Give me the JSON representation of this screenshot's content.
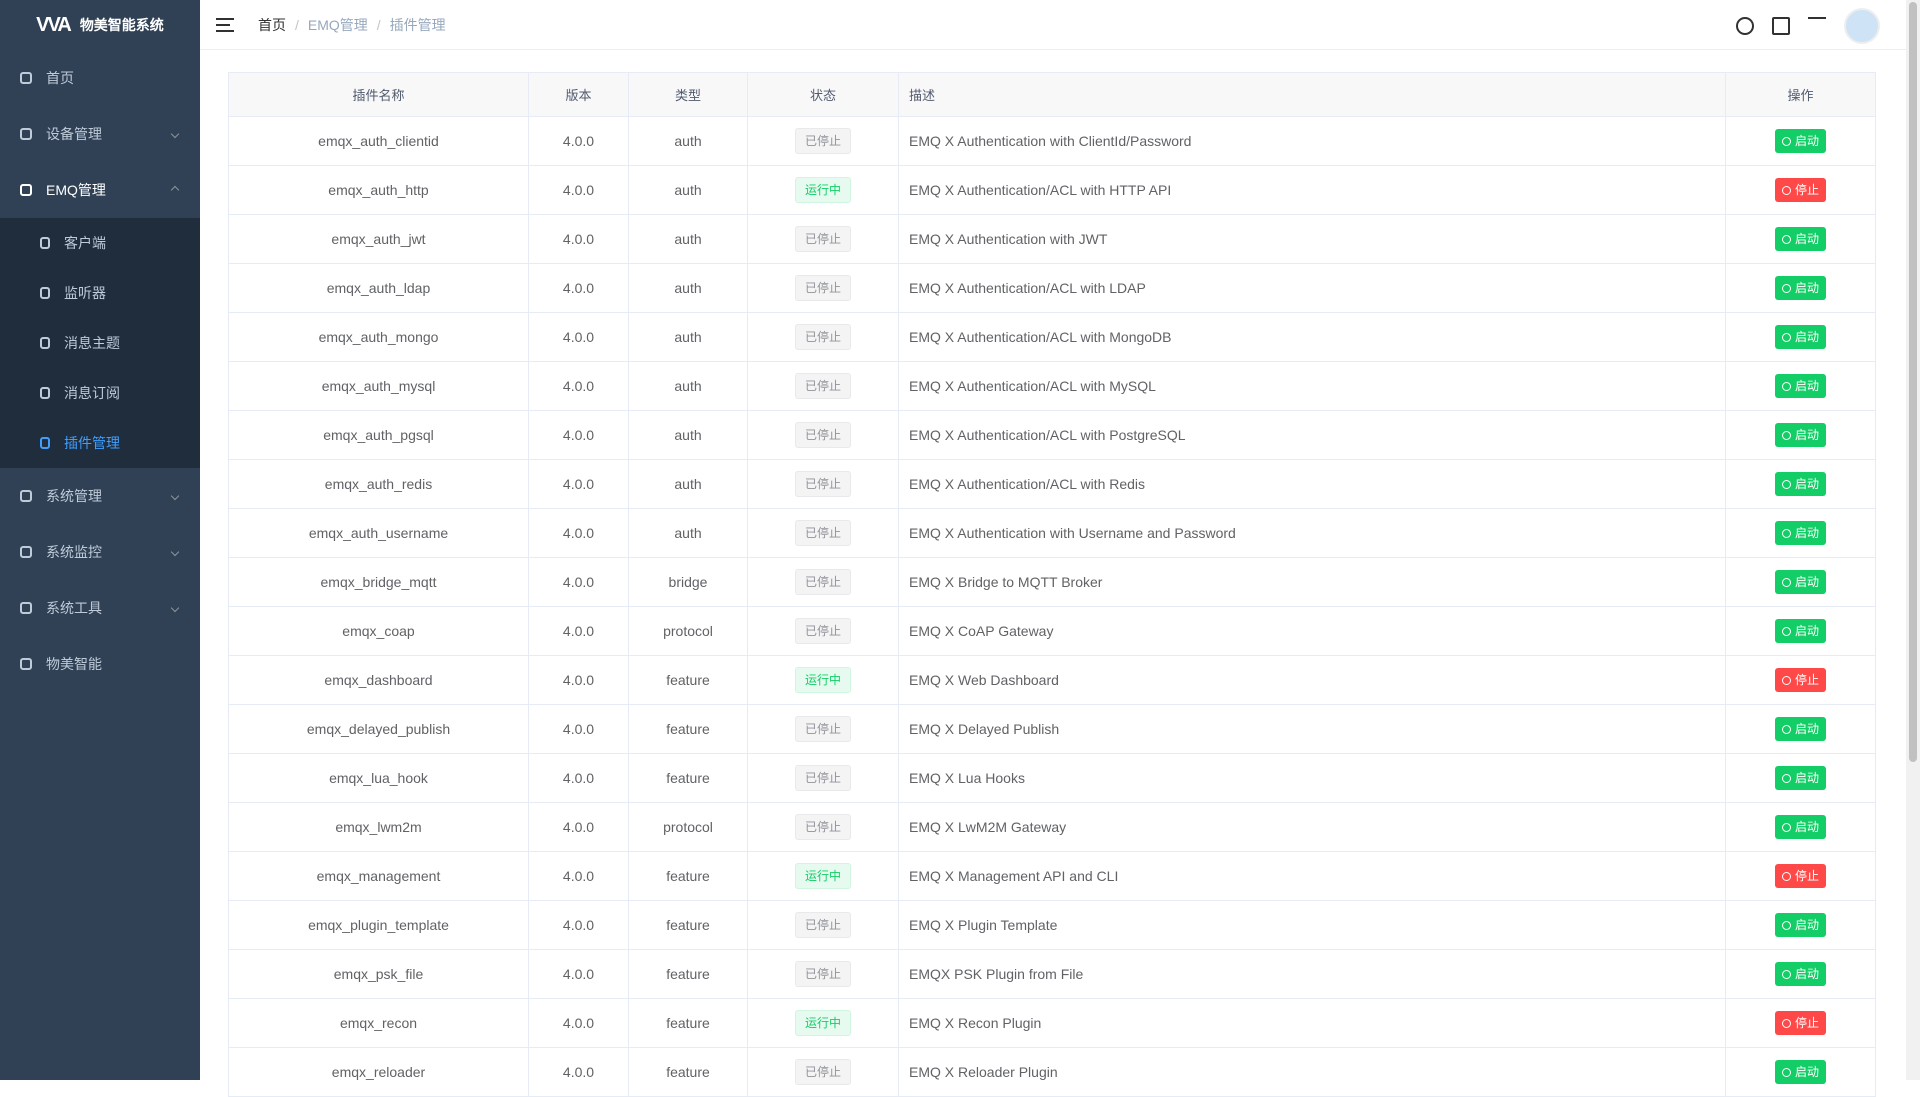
{
  "sidebar": {
    "title": "物美智能系统",
    "menu": [
      {
        "label": "首页"
      },
      {
        "label": "设备管理"
      },
      {
        "label": "EMQ管理",
        "children": [
          "客户端",
          "监听器",
          "消息主题",
          "消息订阅",
          "插件管理"
        ]
      },
      {
        "label": "系统管理"
      },
      {
        "label": "系统监控"
      },
      {
        "label": "系统工具"
      },
      {
        "label": "物美智能"
      }
    ]
  },
  "breadcrumb": [
    "首页",
    "EMQ管理",
    "插件管理"
  ],
  "table": {
    "headers": [
      "插件名称",
      "版本",
      "类型",
      "状态",
      "描述",
      "操作"
    ],
    "rows": [
      {
        "name": "emqx_auth_clientid",
        "version": "4.0.0",
        "type": "auth",
        "status": "已停止",
        "description": "EMQ X Authentication with ClientId/Password",
        "action": "启动",
        "running": false
      },
      {
        "name": "emqx_auth_http",
        "version": "4.0.0",
        "type": "auth",
        "status": "运行中",
        "description": "EMQ X Authentication/ACL with HTTP API",
        "action": "停止",
        "running": true
      },
      {
        "name": "emqx_auth_jwt",
        "version": "4.0.0",
        "type": "auth",
        "status": "已停止",
        "description": "EMQ X Authentication with JWT",
        "action": "启动",
        "running": false
      },
      {
        "name": "emqx_auth_ldap",
        "version": "4.0.0",
        "type": "auth",
        "status": "已停止",
        "description": "EMQ X Authentication/ACL with LDAP",
        "action": "启动",
        "running": false
      },
      {
        "name": "emqx_auth_mongo",
        "version": "4.0.0",
        "type": "auth",
        "status": "已停止",
        "description": "EMQ X Authentication/ACL with MongoDB",
        "action": "启动",
        "running": false
      },
      {
        "name": "emqx_auth_mysql",
        "version": "4.0.0",
        "type": "auth",
        "status": "已停止",
        "description": "EMQ X Authentication/ACL with MySQL",
        "action": "启动",
        "running": false
      },
      {
        "name": "emqx_auth_pgsql",
        "version": "4.0.0",
        "type": "auth",
        "status": "已停止",
        "description": "EMQ X Authentication/ACL with PostgreSQL",
        "action": "启动",
        "running": false
      },
      {
        "name": "emqx_auth_redis",
        "version": "4.0.0",
        "type": "auth",
        "status": "已停止",
        "description": "EMQ X Authentication/ACL with Redis",
        "action": "启动",
        "running": false
      },
      {
        "name": "emqx_auth_username",
        "version": "4.0.0",
        "type": "auth",
        "status": "已停止",
        "description": "EMQ X Authentication with Username and Password",
        "action": "启动",
        "running": false
      },
      {
        "name": "emqx_bridge_mqtt",
        "version": "4.0.0",
        "type": "bridge",
        "status": "已停止",
        "description": "EMQ X Bridge to MQTT Broker",
        "action": "启动",
        "running": false
      },
      {
        "name": "emqx_coap",
        "version": "4.0.0",
        "type": "protocol",
        "status": "已停止",
        "description": "EMQ X CoAP Gateway",
        "action": "启动",
        "running": false
      },
      {
        "name": "emqx_dashboard",
        "version": "4.0.0",
        "type": "feature",
        "status": "运行中",
        "description": "EMQ X Web Dashboard",
        "action": "停止",
        "running": true
      },
      {
        "name": "emqx_delayed_publish",
        "version": "4.0.0",
        "type": "feature",
        "status": "已停止",
        "description": "EMQ X Delayed Publish",
        "action": "启动",
        "running": false
      },
      {
        "name": "emqx_lua_hook",
        "version": "4.0.0",
        "type": "feature",
        "status": "已停止",
        "description": "EMQ X Lua Hooks",
        "action": "启动",
        "running": false
      },
      {
        "name": "emqx_lwm2m",
        "version": "4.0.0",
        "type": "protocol",
        "status": "已停止",
        "description": "EMQ X LwM2M Gateway",
        "action": "启动",
        "running": false
      },
      {
        "name": "emqx_management",
        "version": "4.0.0",
        "type": "feature",
        "status": "运行中",
        "description": "EMQ X Management API and CLI",
        "action": "停止",
        "running": true
      },
      {
        "name": "emqx_plugin_template",
        "version": "4.0.0",
        "type": "feature",
        "status": "已停止",
        "description": "EMQ X Plugin Template",
        "action": "启动",
        "running": false
      },
      {
        "name": "emqx_psk_file",
        "version": "4.0.0",
        "type": "feature",
        "status": "已停止",
        "description": "EMQX PSK Plugin from File",
        "action": "启动",
        "running": false
      },
      {
        "name": "emqx_recon",
        "version": "4.0.0",
        "type": "feature",
        "status": "运行中",
        "description": "EMQ X Recon Plugin",
        "action": "停止",
        "running": true
      },
      {
        "name": "emqx_reloader",
        "version": "4.0.0",
        "type": "feature",
        "status": "已停止",
        "description": "EMQ X Reloader Plugin",
        "action": "启动",
        "running": false
      }
    ]
  }
}
